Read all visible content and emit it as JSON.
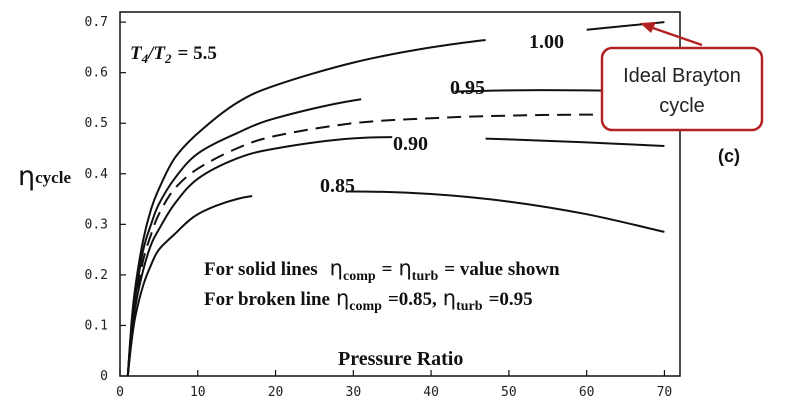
{
  "chart_data": {
    "type": "line",
    "ratio_label": {
      "lhs": "T",
      "lhs_sub": "4",
      "slash": "/",
      "rhs": "T",
      "rhs_sub": "2",
      "value": "= 5.5"
    },
    "ylabel": {
      "main": "η",
      "sub": "cycle"
    },
    "xlabel": "Pressure Ratio",
    "panel_label": "(c)",
    "xlim": [
      0,
      72
    ],
    "ylim": [
      0,
      0.72
    ],
    "x_ticks": [
      {
        "v": 0,
        "label": "0"
      },
      {
        "v": 10,
        "label": "10"
      },
      {
        "v": 20,
        "label": "20"
      },
      {
        "v": 30,
        "label": "30"
      },
      {
        "v": 40,
        "label": "40"
      },
      {
        "v": 50,
        "label": "50"
      },
      {
        "v": 60,
        "label": "60"
      },
      {
        "v": 70,
        "label": "70"
      }
    ],
    "y_ticks": [
      {
        "v": 0,
        "label": "0"
      },
      {
        "v": 0.1,
        "label": "0.1"
      },
      {
        "v": 0.2,
        "label": "0.2"
      },
      {
        "v": 0.3,
        "label": "0.3"
      },
      {
        "v": 0.4,
        "label": "0.4"
      },
      {
        "v": 0.5,
        "label": "0.5"
      },
      {
        "v": 0.6,
        "label": "0.6"
      },
      {
        "v": 0.7,
        "label": "0.7"
      }
    ],
    "series": [
      {
        "name": "1.00",
        "dashed": false,
        "x": [
          1,
          1.5,
          2,
          3,
          4,
          5,
          7,
          10,
          15,
          20,
          30,
          40,
          50,
          60,
          70
        ],
        "y": [
          0,
          0.11,
          0.18,
          0.27,
          0.33,
          0.37,
          0.43,
          0.48,
          0.54,
          0.575,
          0.62,
          0.65,
          0.67,
          0.685,
          0.7
        ]
      },
      {
        "name": "0.95",
        "dashed": false,
        "x": [
          1,
          1.5,
          2,
          3,
          4,
          5,
          7,
          10,
          15,
          20,
          30,
          40,
          50,
          60,
          70
        ],
        "y": [
          0,
          0.1,
          0.16,
          0.25,
          0.3,
          0.34,
          0.39,
          0.44,
          0.48,
          0.51,
          0.545,
          0.56,
          0.565,
          0.565,
          0.562
        ]
      },
      {
        "name": "",
        "dashed": true,
        "x": [
          1,
          1.5,
          2,
          3,
          4,
          5,
          7,
          10,
          15,
          20,
          30,
          40,
          50,
          60,
          70
        ],
        "y": [
          0,
          0.09,
          0.15,
          0.23,
          0.28,
          0.32,
          0.37,
          0.41,
          0.45,
          0.475,
          0.5,
          0.51,
          0.515,
          0.517,
          0.517
        ]
      },
      {
        "name": "0.90",
        "dashed": false,
        "x": [
          1,
          1.5,
          2,
          3,
          4,
          5,
          7,
          10,
          15,
          20,
          30,
          40,
          50,
          60,
          70
        ],
        "y": [
          0,
          0.08,
          0.14,
          0.21,
          0.26,
          0.29,
          0.34,
          0.39,
          0.43,
          0.45,
          0.47,
          0.472,
          0.468,
          0.462,
          0.455
        ]
      },
      {
        "name": "0.85",
        "dashed": false,
        "x": [
          1,
          1.5,
          2,
          3,
          4,
          5,
          7,
          10,
          15,
          20,
          30,
          40,
          50,
          60,
          70
        ],
        "y": [
          0,
          0.07,
          0.12,
          0.18,
          0.22,
          0.25,
          0.28,
          0.32,
          0.35,
          0.36,
          0.365,
          0.36,
          0.345,
          0.32,
          0.285
        ]
      }
    ],
    "series_labels": [
      "1.00",
      "0.95",
      "0.90",
      "0.85"
    ],
    "note": {
      "line1": {
        "prefix": "For solid lines",
        "eta1": "η",
        "sub1": "comp",
        "mid": "=",
        "eta2": "η",
        "sub2": "turb",
        "suffix": "= value shown"
      },
      "line2": {
        "prefix": "For broken line",
        "eta1": "η",
        "sub1": "comp",
        "mid": "=0.85,",
        "eta2": "η",
        "sub2": "turb",
        "suffix": "=0.95"
      }
    },
    "callout": {
      "line1": "Ideal Brayton",
      "line2": "cycle",
      "border_color": "#b22222",
      "arrow_color": "#b22222"
    }
  }
}
